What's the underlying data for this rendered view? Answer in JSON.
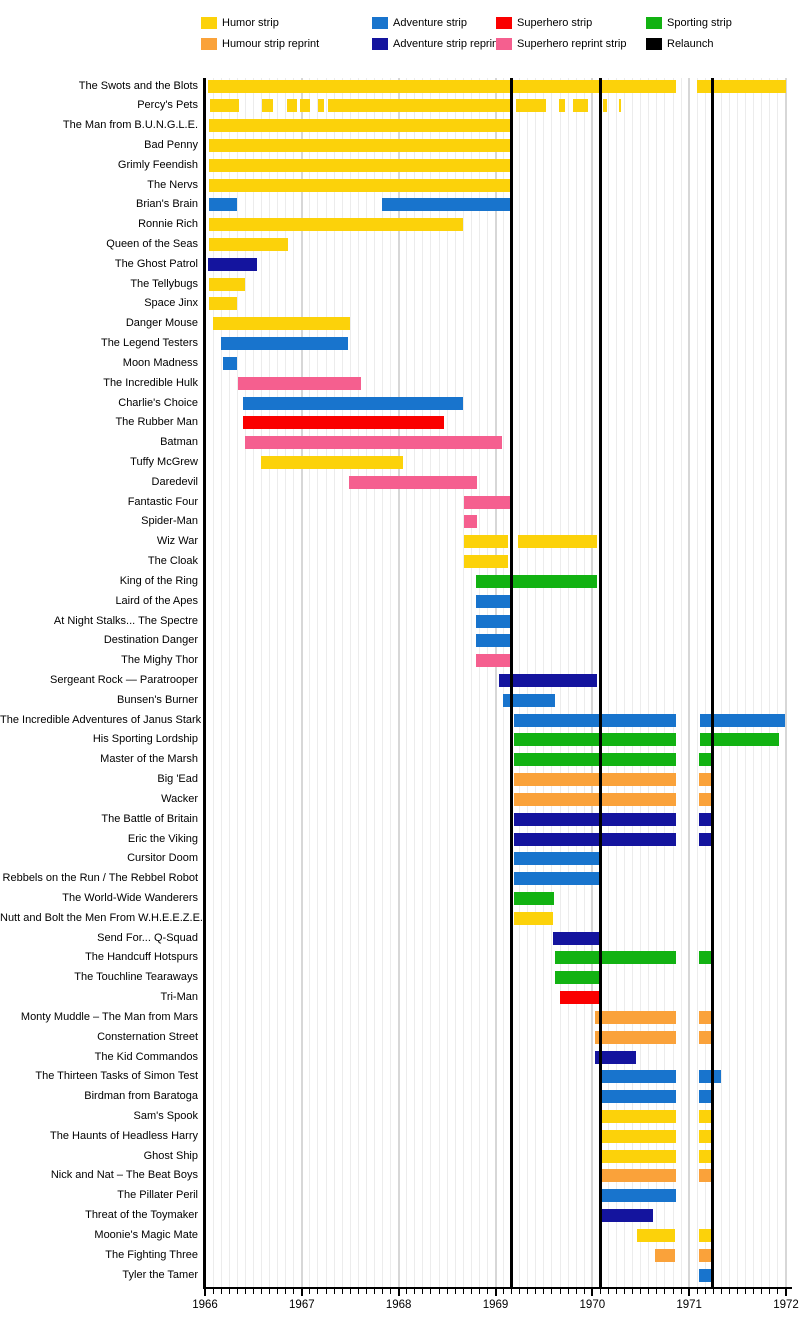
{
  "legend": {
    "items": [
      {
        "label": "Humor strip",
        "color_key": "humor"
      },
      {
        "label": "Humour strip reprint",
        "color_key": "humor_reprint"
      },
      {
        "label": "Adventure strip",
        "color_key": "adventure"
      },
      {
        "label": "Adventure strip reprint",
        "color_key": "adventure_reprint"
      },
      {
        "label": "Superhero strip",
        "color_key": "superhero"
      },
      {
        "label": "Superhero reprint strip",
        "color_key": "superhero_reprint"
      },
      {
        "label": "Sporting strip",
        "color_key": "sporting"
      },
      {
        "label": "Relaunch",
        "color_key": "relaunch"
      }
    ]
  },
  "colors": {
    "humor": "#FCD20A",
    "humor_reprint": "#FAA23A",
    "adventure": "#1874CD",
    "adventure_reprint": "#14149E",
    "superhero": "#FA0000",
    "superhero_reprint": "#F55F8F",
    "sporting": "#12B212",
    "relaunch": "#000000"
  },
  "chart_data": {
    "type": "gantt",
    "title": "",
    "xlabel": "",
    "ylabel": "",
    "x_min": 1966,
    "x_max": 1972,
    "x_ticks": [
      1966,
      1967,
      1968,
      1969,
      1970,
      1971,
      1972
    ],
    "minor_ticks_per_year": 12,
    "grid": "monthly vertical, light gray",
    "legend_position": "top",
    "relaunch_lines": [
      1969.17,
      1970.08,
      1971.24
    ],
    "rows": [
      {
        "label": "The Swots and the Blots",
        "segments": [
          {
            "start": 1966.03,
            "end": 1970.86,
            "type": "humor"
          },
          {
            "start": 1971.08,
            "end": 1972.0,
            "type": "humor"
          }
        ]
      },
      {
        "label": "Percy's Pets",
        "segments": [
          {
            "start": 1966.05,
            "end": 1966.35,
            "type": "humor"
          },
          {
            "start": 1966.59,
            "end": 1966.7,
            "type": "humor"
          },
          {
            "start": 1966.85,
            "end": 1966.95,
            "type": "humor"
          },
          {
            "start": 1966.98,
            "end": 1967.08,
            "type": "humor"
          },
          {
            "start": 1967.17,
            "end": 1967.23,
            "type": "humor"
          },
          {
            "start": 1967.27,
            "end": 1969.17,
            "type": "humor"
          },
          {
            "start": 1969.21,
            "end": 1969.52,
            "type": "humor"
          },
          {
            "start": 1969.66,
            "end": 1969.72,
            "type": "humor"
          },
          {
            "start": 1969.8,
            "end": 1969.96,
            "type": "humor"
          },
          {
            "start": 1970.11,
            "end": 1970.15,
            "type": "humor"
          },
          {
            "start": 1970.28,
            "end": 1970.3,
            "type": "humor"
          }
        ]
      },
      {
        "label": "The Man from B.U.N.G.L.E.",
        "segments": [
          {
            "start": 1966.04,
            "end": 1969.17,
            "type": "humor"
          }
        ]
      },
      {
        "label": "Bad Penny",
        "segments": [
          {
            "start": 1966.04,
            "end": 1969.17,
            "type": "humor"
          }
        ]
      },
      {
        "label": "Grimly Feendish",
        "segments": [
          {
            "start": 1966.04,
            "end": 1969.17,
            "type": "humor"
          }
        ]
      },
      {
        "label": "The Nervs",
        "segments": [
          {
            "start": 1966.04,
            "end": 1969.17,
            "type": "humor"
          }
        ]
      },
      {
        "label": "Brian's Brain",
        "segments": [
          {
            "start": 1966.04,
            "end": 1966.33,
            "type": "adventure"
          },
          {
            "start": 1967.83,
            "end": 1969.17,
            "type": "adventure"
          }
        ]
      },
      {
        "label": "Ronnie Rich",
        "segments": [
          {
            "start": 1966.04,
            "end": 1968.66,
            "type": "humor"
          }
        ]
      },
      {
        "label": "Queen of the Seas",
        "segments": [
          {
            "start": 1966.04,
            "end": 1966.86,
            "type": "humor"
          }
        ]
      },
      {
        "label": "The Ghost Patrol",
        "segments": [
          {
            "start": 1966.03,
            "end": 1966.54,
            "type": "adventure_reprint"
          }
        ]
      },
      {
        "label": "The Tellybugs",
        "segments": [
          {
            "start": 1966.04,
            "end": 1966.41,
            "type": "humor"
          }
        ]
      },
      {
        "label": "Space Jinx",
        "segments": [
          {
            "start": 1966.04,
            "end": 1966.33,
            "type": "humor"
          }
        ]
      },
      {
        "label": "Danger Mouse",
        "segments": [
          {
            "start": 1966.08,
            "end": 1967.5,
            "type": "humor"
          }
        ]
      },
      {
        "label": "The Legend Testers",
        "segments": [
          {
            "start": 1966.17,
            "end": 1967.48,
            "type": "adventure"
          }
        ]
      },
      {
        "label": "Moon Madness",
        "segments": [
          {
            "start": 1966.19,
            "end": 1966.33,
            "type": "adventure"
          }
        ]
      },
      {
        "label": "The Incredible Hulk",
        "segments": [
          {
            "start": 1966.34,
            "end": 1967.61,
            "type": "superhero_reprint"
          }
        ]
      },
      {
        "label": "Charlie's Choice",
        "segments": [
          {
            "start": 1966.39,
            "end": 1968.66,
            "type": "adventure"
          }
        ]
      },
      {
        "label": "The Rubber Man",
        "segments": [
          {
            "start": 1966.39,
            "end": 1968.47,
            "type": "superhero"
          }
        ]
      },
      {
        "label": "Batman",
        "segments": [
          {
            "start": 1966.41,
            "end": 1969.07,
            "type": "superhero_reprint"
          }
        ]
      },
      {
        "label": "Tuffy McGrew",
        "segments": [
          {
            "start": 1966.58,
            "end": 1968.04,
            "type": "humor"
          }
        ]
      },
      {
        "label": "Daredevil",
        "segments": [
          {
            "start": 1967.49,
            "end": 1968.81,
            "type": "superhero_reprint"
          }
        ]
      },
      {
        "label": "Fantastic Four",
        "segments": [
          {
            "start": 1968.67,
            "end": 1969.17,
            "type": "superhero_reprint"
          }
        ]
      },
      {
        "label": "Spider-Man",
        "segments": [
          {
            "start": 1968.67,
            "end": 1968.81,
            "type": "superhero_reprint"
          }
        ]
      },
      {
        "label": "Wiz War",
        "segments": [
          {
            "start": 1968.67,
            "end": 1969.13,
            "type": "humor"
          },
          {
            "start": 1969.23,
            "end": 1970.05,
            "type": "humor"
          }
        ]
      },
      {
        "label": "The Cloak",
        "segments": [
          {
            "start": 1968.67,
            "end": 1969.13,
            "type": "humor"
          }
        ]
      },
      {
        "label": "King of the Ring",
        "segments": [
          {
            "start": 1968.8,
            "end": 1970.05,
            "type": "sporting"
          }
        ]
      },
      {
        "label": "Laird of the Apes",
        "segments": [
          {
            "start": 1968.8,
            "end": 1969.17,
            "type": "adventure"
          }
        ]
      },
      {
        "label": "At Night Stalks... The Spectre",
        "segments": [
          {
            "start": 1968.8,
            "end": 1969.17,
            "type": "adventure"
          }
        ]
      },
      {
        "label": "Destination Danger",
        "segments": [
          {
            "start": 1968.8,
            "end": 1969.17,
            "type": "adventure"
          }
        ]
      },
      {
        "label": "The Mighy Thor",
        "segments": [
          {
            "start": 1968.8,
            "end": 1969.17,
            "type": "superhero_reprint"
          }
        ]
      },
      {
        "label": "Sergeant Rock — Paratrooper",
        "segments": [
          {
            "start": 1969.04,
            "end": 1970.05,
            "type": "adventure_reprint"
          }
        ]
      },
      {
        "label": "Bunsen's Burner",
        "segments": [
          {
            "start": 1969.08,
            "end": 1969.61,
            "type": "adventure"
          }
        ]
      },
      {
        "label": "The Incredible Adventures of Janus Stark",
        "segments": [
          {
            "start": 1969.19,
            "end": 1970.86,
            "type": "adventure"
          },
          {
            "start": 1971.11,
            "end": 1971.99,
            "type": "adventure"
          }
        ]
      },
      {
        "label": "His Sporting Lordship",
        "segments": [
          {
            "start": 1969.19,
            "end": 1970.86,
            "type": "sporting"
          },
          {
            "start": 1971.11,
            "end": 1971.93,
            "type": "sporting"
          }
        ]
      },
      {
        "label": "Master of the Marsh",
        "segments": [
          {
            "start": 1969.19,
            "end": 1970.86,
            "type": "sporting"
          },
          {
            "start": 1971.1,
            "end": 1971.23,
            "type": "sporting"
          }
        ]
      },
      {
        "label": "Big 'Ead",
        "segments": [
          {
            "start": 1969.19,
            "end": 1970.86,
            "type": "humor_reprint"
          },
          {
            "start": 1971.1,
            "end": 1971.23,
            "type": "humor_reprint"
          }
        ]
      },
      {
        "label": "Wacker",
        "segments": [
          {
            "start": 1969.19,
            "end": 1970.86,
            "type": "humor_reprint"
          },
          {
            "start": 1971.1,
            "end": 1971.23,
            "type": "humor_reprint"
          }
        ]
      },
      {
        "label": "The Battle of Britain",
        "segments": [
          {
            "start": 1969.19,
            "end": 1970.86,
            "type": "adventure_reprint"
          },
          {
            "start": 1971.1,
            "end": 1971.23,
            "type": "adventure_reprint"
          }
        ]
      },
      {
        "label": "Eric the Viking",
        "segments": [
          {
            "start": 1969.19,
            "end": 1970.86,
            "type": "adventure_reprint"
          },
          {
            "start": 1971.1,
            "end": 1971.23,
            "type": "adventure_reprint"
          }
        ]
      },
      {
        "label": "Cursitor Doom",
        "segments": [
          {
            "start": 1969.19,
            "end": 1970.07,
            "type": "adventure"
          }
        ]
      },
      {
        "label": "Rebbels on the Run / The Rebbel Robot",
        "segments": [
          {
            "start": 1969.19,
            "end": 1970.07,
            "type": "adventure"
          }
        ]
      },
      {
        "label": "The World-Wide Wanderers",
        "segments": [
          {
            "start": 1969.19,
            "end": 1969.6,
            "type": "sporting"
          }
        ]
      },
      {
        "label": "Nutt and Bolt the Men From W.H.E.E.Z.E.",
        "segments": [
          {
            "start": 1969.19,
            "end": 1969.59,
            "type": "humor"
          }
        ]
      },
      {
        "label": "Send For... Q-Squad",
        "segments": [
          {
            "start": 1969.59,
            "end": 1970.07,
            "type": "adventure_reprint"
          }
        ]
      },
      {
        "label": "The Handcuff Hotspurs",
        "segments": [
          {
            "start": 1969.61,
            "end": 1970.86,
            "type": "sporting"
          },
          {
            "start": 1971.1,
            "end": 1971.23,
            "type": "sporting"
          }
        ]
      },
      {
        "label": "The Touchline Tearaways",
        "segments": [
          {
            "start": 1969.61,
            "end": 1970.07,
            "type": "sporting"
          }
        ]
      },
      {
        "label": "Tri-Man",
        "segments": [
          {
            "start": 1969.67,
            "end": 1970.07,
            "type": "superhero"
          }
        ]
      },
      {
        "label": "Monty Muddle – The Man from Mars",
        "segments": [
          {
            "start": 1970.03,
            "end": 1970.86,
            "type": "humor_reprint"
          },
          {
            "start": 1971.1,
            "end": 1971.23,
            "type": "humor_reprint"
          }
        ]
      },
      {
        "label": "Consternation Street",
        "segments": [
          {
            "start": 1970.03,
            "end": 1970.86,
            "type": "humor_reprint"
          },
          {
            "start": 1971.1,
            "end": 1971.23,
            "type": "humor_reprint"
          }
        ]
      },
      {
        "label": "The Kid Commandos",
        "segments": [
          {
            "start": 1970.03,
            "end": 1970.45,
            "type": "adventure_reprint"
          }
        ]
      },
      {
        "label": "The Thirteen Tasks of Simon Test",
        "segments": [
          {
            "start": 1970.09,
            "end": 1970.86,
            "type": "adventure"
          },
          {
            "start": 1971.1,
            "end": 1971.33,
            "type": "adventure"
          }
        ]
      },
      {
        "label": "Birdman from Baratoga",
        "segments": [
          {
            "start": 1970.09,
            "end": 1970.86,
            "type": "adventure"
          },
          {
            "start": 1971.1,
            "end": 1971.23,
            "type": "adventure"
          }
        ]
      },
      {
        "label": "Sam's Spook",
        "segments": [
          {
            "start": 1970.09,
            "end": 1970.86,
            "type": "humor"
          },
          {
            "start": 1971.1,
            "end": 1971.23,
            "type": "humor"
          }
        ]
      },
      {
        "label": "The Haunts of Headless Harry",
        "segments": [
          {
            "start": 1970.09,
            "end": 1970.86,
            "type": "humor"
          },
          {
            "start": 1971.1,
            "end": 1971.23,
            "type": "humor"
          }
        ]
      },
      {
        "label": "Ghost Ship",
        "segments": [
          {
            "start": 1970.09,
            "end": 1970.86,
            "type": "humor"
          },
          {
            "start": 1971.1,
            "end": 1971.23,
            "type": "humor"
          }
        ]
      },
      {
        "label": "Nick and Nat – The Beat Boys",
        "segments": [
          {
            "start": 1970.09,
            "end": 1970.86,
            "type": "humor_reprint"
          },
          {
            "start": 1971.1,
            "end": 1971.23,
            "type": "humor_reprint"
          }
        ]
      },
      {
        "label": "The Pillater Peril",
        "segments": [
          {
            "start": 1970.09,
            "end": 1970.86,
            "type": "adventure"
          }
        ]
      },
      {
        "label": "Threat of the Toymaker",
        "segments": [
          {
            "start": 1970.09,
            "end": 1970.63,
            "type": "adventure_reprint"
          }
        ]
      },
      {
        "label": "Moonie's Magic Mate",
        "segments": [
          {
            "start": 1970.46,
            "end": 1970.85,
            "type": "humor"
          },
          {
            "start": 1971.1,
            "end": 1971.23,
            "type": "humor"
          }
        ]
      },
      {
        "label": "The Fighting Three",
        "segments": [
          {
            "start": 1970.65,
            "end": 1970.85,
            "type": "humor_reprint"
          },
          {
            "start": 1971.1,
            "end": 1971.23,
            "type": "humor_reprint"
          }
        ]
      },
      {
        "label": "Tyler the Tamer",
        "segments": [
          {
            "start": 1971.1,
            "end": 1971.24,
            "type": "adventure"
          }
        ]
      }
    ]
  }
}
